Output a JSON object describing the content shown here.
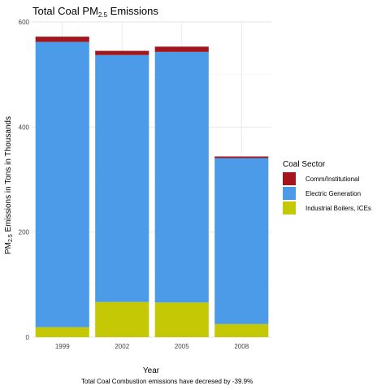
{
  "chart_data": {
    "type": "bar",
    "stacked": true,
    "title": "Total Coal PM2.5 Emissions",
    "xlabel": "Year",
    "ylabel": "PM2.5 Emissions in Tons in Thousands",
    "categories": [
      "1999",
      "2002",
      "2005",
      "2008"
    ],
    "ylim": [
      0,
      600
    ],
    "yticks": [
      0,
      200,
      400,
      600
    ],
    "grid": true,
    "legend": {
      "title": "Coal Sector",
      "position": "right"
    },
    "series": [
      {
        "name": "Industrial Boilers, ICEs",
        "color": "#c5c905",
        "values": [
          19,
          67,
          66,
          25
        ]
      },
      {
        "name": "Electric Generation",
        "color": "#4b9be9",
        "values": [
          543,
          470,
          477,
          316
        ]
      },
      {
        "name": "Comm/Institutional",
        "color": "#a3161b",
        "values": [
          10,
          8,
          10,
          3
        ]
      }
    ],
    "caption": "Total Coal Combustion emissions have decresed by -39.9%"
  }
}
